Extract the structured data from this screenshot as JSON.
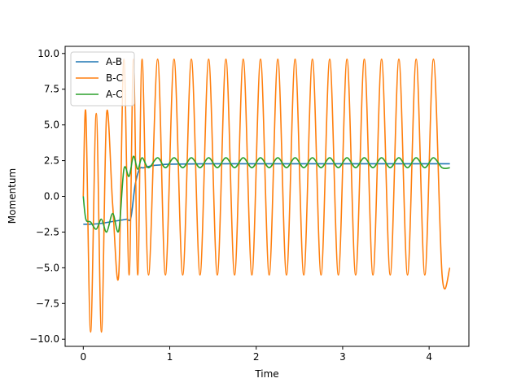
{
  "chart_data": {
    "type": "line",
    "title": "",
    "xlabel": "Time",
    "ylabel": "Momentum",
    "xlim": [
      -0.21,
      4.46
    ],
    "ylim": [
      -10.5,
      10.5
    ],
    "x_ticks": [
      0,
      1,
      2,
      3,
      4
    ],
    "y_ticks": [
      10.0,
      7.5,
      5.0,
      2.5,
      0.0,
      -2.5,
      -5.0,
      -7.5,
      -10.0
    ],
    "x_tick_labels": [
      "0",
      "1",
      "2",
      "3",
      "4"
    ],
    "y_tick_labels": [
      "10.0",
      "7.5",
      "5.0",
      "2.5",
      "0.0",
      "−2.5",
      "−5.0",
      "−7.5",
      "−10.0"
    ],
    "grid": false,
    "legend_position": "top-left",
    "series": [
      {
        "name": "A-B",
        "color": "#1f77b4",
        "x": [
          0.0,
          0.1,
          0.2,
          0.3,
          0.4,
          0.5,
          0.55,
          0.6,
          0.65,
          0.7,
          0.8,
          0.9,
          1.0,
          1.5,
          2.0,
          2.5,
          3.0,
          3.5,
          4.0,
          4.24
        ],
        "y": [
          -1.95,
          -1.95,
          -1.9,
          -1.8,
          -1.7,
          -1.6,
          -1.5,
          0.8,
          1.9,
          2.0,
          2.15,
          2.2,
          2.25,
          2.28,
          2.28,
          2.28,
          2.28,
          2.28,
          2.28,
          2.28
        ]
      },
      {
        "name": "B-C",
        "color": "#ff7f0e",
        "x": [
          0.0,
          0.03,
          0.085,
          0.15,
          0.21,
          0.27,
          0.34,
          0.41,
          0.47,
          0.53,
          0.58,
          0.63,
          0.68,
          0.755,
          0.86,
          0.95,
          1.05,
          1.15,
          1.25,
          1.35,
          1.45,
          1.55,
          1.65,
          1.75,
          1.85,
          1.95,
          2.05,
          2.15,
          2.25,
          2.35,
          2.45,
          2.55,
          2.65,
          2.75,
          2.85,
          2.95,
          3.05,
          3.15,
          3.25,
          3.35,
          3.45,
          3.55,
          3.65,
          3.75,
          3.85,
          3.95,
          4.05,
          4.15,
          4.24
        ],
        "y": [
          0.0,
          5.8,
          -9.5,
          5.8,
          -9.5,
          5.8,
          -0.6,
          -5.5,
          9.6,
          -5.5,
          9.6,
          -5.5,
          9.6,
          -5.5,
          9.6,
          -5.5,
          9.6,
          -5.5,
          9.6,
          -5.5,
          9.6,
          -5.5,
          9.6,
          -5.5,
          9.6,
          -5.5,
          9.6,
          -5.5,
          9.6,
          -5.5,
          9.6,
          -5.5,
          9.6,
          -5.5,
          9.6,
          -5.5,
          9.6,
          -5.5,
          9.6,
          -5.5,
          9.6,
          -5.5,
          9.6,
          -5.5,
          9.6,
          -5.5,
          9.6,
          -5.5,
          -5.0
        ]
      },
      {
        "name": "A-C",
        "color": "#2ca02c",
        "x": [
          0.0,
          0.03,
          0.085,
          0.15,
          0.21,
          0.27,
          0.34,
          0.41,
          0.47,
          0.53,
          0.58,
          0.63,
          0.68,
          0.755,
          0.86,
          0.95,
          1.05,
          1.15,
          1.25,
          1.35,
          1.45,
          1.55,
          1.65,
          1.75,
          1.85,
          1.95,
          2.05,
          2.15,
          2.25,
          2.35,
          2.45,
          2.55,
          2.65,
          2.75,
          2.85,
          2.95,
          3.05,
          3.15,
          3.25,
          3.35,
          3.45,
          3.55,
          3.65,
          3.75,
          3.85,
          3.95,
          4.05,
          4.15,
          4.24
        ],
        "y": [
          0.0,
          -1.6,
          -1.8,
          -2.3,
          -1.6,
          -2.5,
          -1.2,
          -2.4,
          1.9,
          1.4,
          2.8,
          1.9,
          2.7,
          2.0,
          2.7,
          2.0,
          2.7,
          2.0,
          2.7,
          2.0,
          2.7,
          2.0,
          2.7,
          2.0,
          2.7,
          2.0,
          2.7,
          2.0,
          2.7,
          2.0,
          2.7,
          2.0,
          2.7,
          2.0,
          2.7,
          2.0,
          2.7,
          2.0,
          2.7,
          2.0,
          2.7,
          2.0,
          2.7,
          2.0,
          2.7,
          2.0,
          2.7,
          2.0,
          2.0
        ]
      }
    ]
  }
}
